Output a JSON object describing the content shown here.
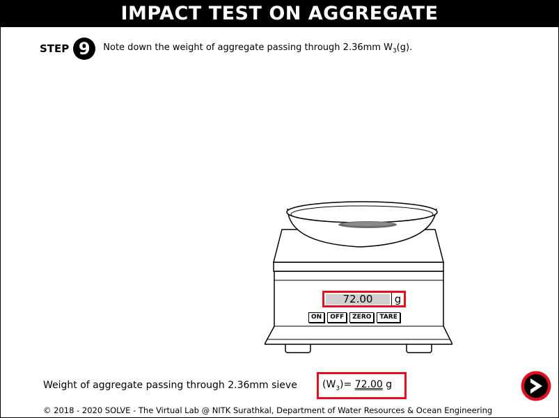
{
  "header": {
    "title": "IMPACT TEST ON AGGREGATE"
  },
  "step": {
    "word": "STEP",
    "number": "9",
    "instruction_pre": "Note down the weight of aggregate passing through 2.36mm W",
    "instruction_sub": "3",
    "instruction_post": "(g)."
  },
  "scale": {
    "display_value": "72.00",
    "display_unit": "g",
    "buttons": [
      "ON",
      "OFF",
      "ZERO",
      "TARE"
    ]
  },
  "result": {
    "label": "Weight of aggregate passing through 2.36mm sieve",
    "symbol_pre": "(W",
    "symbol_sub": "3",
    "symbol_post": ")=",
    "value": "72.00",
    "unit": "g"
  },
  "next_button": {
    "icon": "chevron-right-icon",
    "accent": "#e01020"
  },
  "footer": {
    "text": "© 2018 - 2020 SOLVE - The Virtual Lab @ NITK Surathkal, Department of Water Resources & Ocean Engineering"
  }
}
